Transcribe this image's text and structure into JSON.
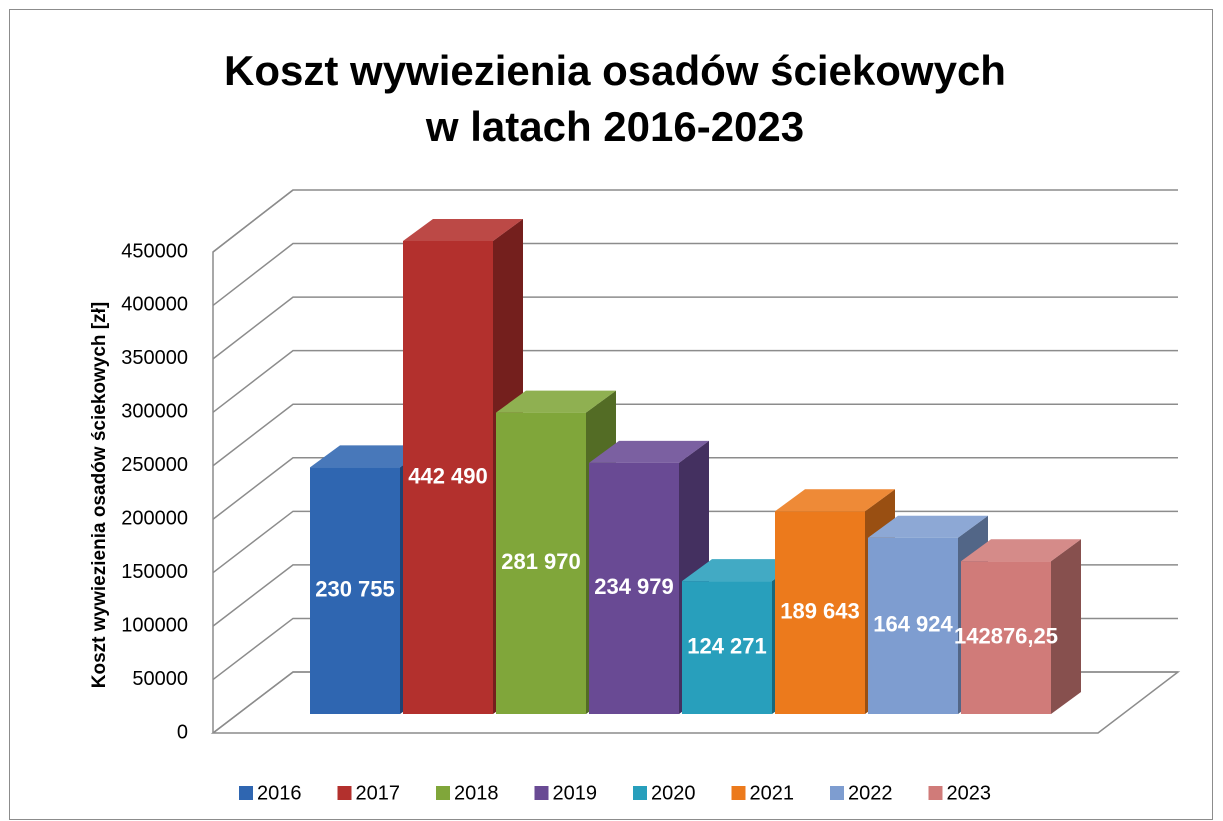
{
  "chart_data": {
    "type": "bar",
    "title": [
      "Koszt wywiezienia osadów ściekowych",
      "w latach 2016-2023"
    ],
    "y_label": "Koszt wywiezienia osadów ściekowych [zł]",
    "ylim": [
      0,
      450000
    ],
    "yticks": [
      0,
      50000,
      100000,
      150000,
      200000,
      250000,
      300000,
      350000,
      400000,
      450000
    ],
    "grid": true,
    "legend": "bottom",
    "series": [
      {
        "name": "2016",
        "color": "#2f66b1",
        "values": [
          230755
        ],
        "value_labels": [
          "230 755"
        ]
      },
      {
        "name": "2017",
        "color": "#b3302d",
        "values": [
          442490
        ],
        "value_labels": [
          "442 490"
        ]
      },
      {
        "name": "2018",
        "color": "#80a63a",
        "values": [
          281970
        ],
        "value_labels": [
          "281 970"
        ]
      },
      {
        "name": "2019",
        "color": "#694a94",
        "values": [
          234979
        ],
        "value_labels": [
          "234 979"
        ]
      },
      {
        "name": "2020",
        "color": "#289fbc",
        "values": [
          124271
        ],
        "value_labels": [
          "124 271"
        ]
      },
      {
        "name": "2021",
        "color": "#ec7a1c",
        "values": [
          189643
        ],
        "value_labels": [
          "189 643"
        ]
      },
      {
        "name": "2022",
        "color": "#7e9dd0",
        "values": [
          164924
        ],
        "value_labels": [
          "164 924"
        ]
      },
      {
        "name": "2023",
        "color": "#d07b79",
        "values": [
          142876.25
        ],
        "value_labels": [
          "142876,25"
        ]
      }
    ]
  }
}
